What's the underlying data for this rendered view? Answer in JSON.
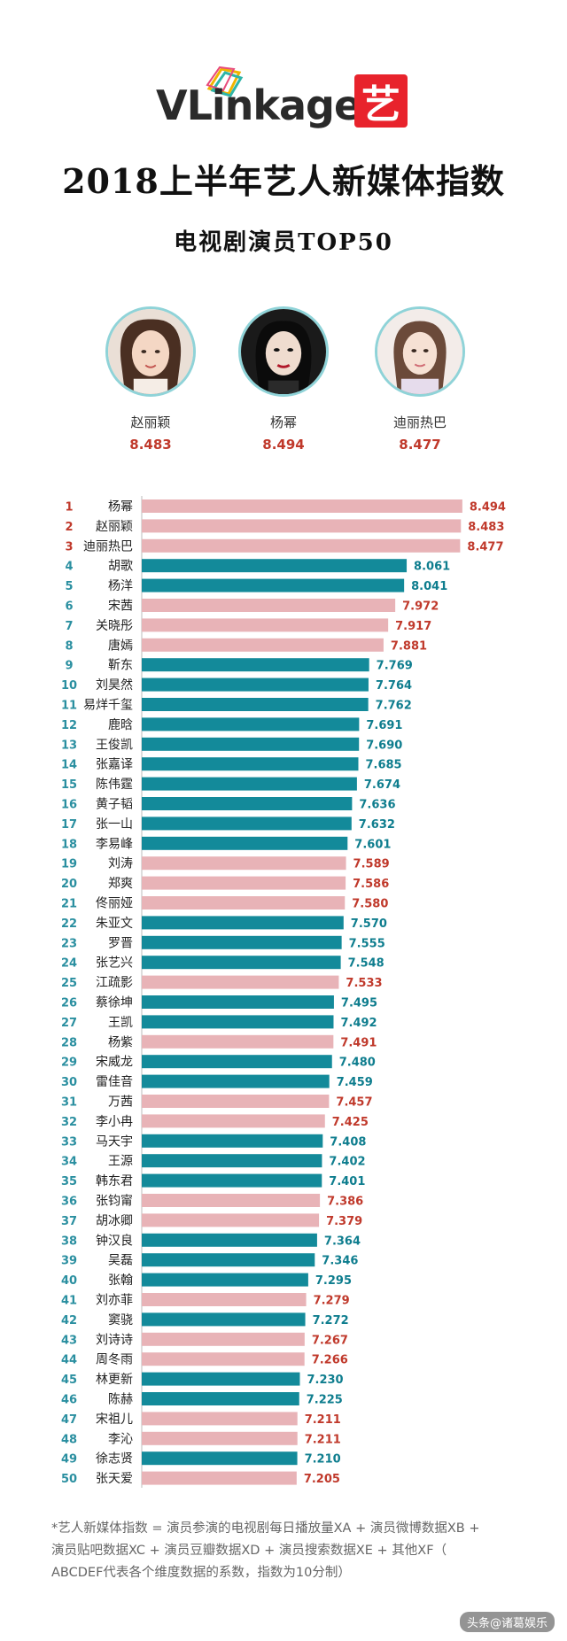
{
  "header": {
    "logo_text": "VLinkage",
    "badge": "艺",
    "title": "2018上半年艺人新媒体指数",
    "subtitle": "电视剧演员TOP50"
  },
  "podium": [
    {
      "name": "赵丽颖",
      "score": "8.483"
    },
    {
      "name": "杨幂",
      "score": "8.494"
    },
    {
      "name": "迪丽热巴",
      "score": "8.477"
    }
  ],
  "colors": {
    "pink": "#e8b3b7",
    "teal": "#138a9a",
    "rank_red": "#c0392b",
    "rank_teal": "#2a8fa0",
    "value_pink": "#c0392b",
    "value_teal": "#0e7d8e"
  },
  "chart_data": {
    "type": "bar",
    "orientation": "horizontal",
    "ranks": [
      1,
      2,
      3,
      4,
      5,
      6,
      7,
      8,
      9,
      10,
      11,
      12,
      13,
      14,
      15,
      16,
      17,
      18,
      19,
      20,
      21,
      22,
      23,
      24,
      25,
      26,
      27,
      28,
      29,
      30,
      31,
      32,
      33,
      34,
      35,
      36,
      37,
      38,
      39,
      40,
      41,
      42,
      43,
      44,
      45,
      46,
      47,
      48,
      49,
      50
    ],
    "categories": [
      "杨幂",
      "赵丽颖",
      "迪丽热巴",
      "胡歌",
      "杨洋",
      "宋茜",
      "关晓彤",
      "唐嫣",
      "靳东",
      "刘昊然",
      "易烊千玺",
      "鹿晗",
      "王俊凯",
      "张嘉译",
      "陈伟霆",
      "黄子韬",
      "张一山",
      "李易峰",
      "刘涛",
      "郑爽",
      "佟丽娅",
      "朱亚文",
      "罗晋",
      "张艺兴",
      "江疏影",
      "蔡徐坤",
      "王凯",
      "杨紫",
      "宋威龙",
      "雷佳音",
      "万茜",
      "李小冉",
      "马天宇",
      "王源",
      "韩东君",
      "张钧甯",
      "胡冰卿",
      "钟汉良",
      "吴磊",
      "张翰",
      "刘亦菲",
      "窦骁",
      "刘诗诗",
      "周冬雨",
      "林更新",
      "陈赫",
      "宋祖儿",
      "李沁",
      "徐志贤",
      "张天爱"
    ],
    "values": [
      8.494,
      8.483,
      8.477,
      8.061,
      8.041,
      7.972,
      7.917,
      7.881,
      7.769,
      7.764,
      7.762,
      7.691,
      7.69,
      7.685,
      7.674,
      7.636,
      7.632,
      7.601,
      7.589,
      7.586,
      7.58,
      7.57,
      7.555,
      7.548,
      7.533,
      7.495,
      7.492,
      7.491,
      7.48,
      7.459,
      7.457,
      7.425,
      7.408,
      7.402,
      7.401,
      7.386,
      7.379,
      7.364,
      7.346,
      7.295,
      7.279,
      7.272,
      7.267,
      7.266,
      7.23,
      7.225,
      7.211,
      7.211,
      7.21,
      7.205
    ],
    "value_labels": [
      "8.494",
      "8.483",
      "8.477",
      "8.061",
      "8.041",
      "7.972",
      "7.917",
      "7.881",
      "7.769",
      "7.764",
      "7.762",
      "7.691",
      "7.690",
      "7.685",
      "7.674",
      "7.636",
      "7.632",
      "7.601",
      "7.589",
      "7.586",
      "7.580",
      "7.570",
      "7.555",
      "7.548",
      "7.533",
      "7.495",
      "7.492",
      "7.491",
      "7.480",
      "7.459",
      "7.457",
      "7.425",
      "7.408",
      "7.402",
      "7.401",
      "7.386",
      "7.379",
      "7.364",
      "7.346",
      "7.295",
      "7.279",
      "7.272",
      "7.267",
      "7.266",
      "7.230",
      "7.225",
      "7.211",
      "7.211",
      "7.210",
      "7.205"
    ],
    "gender": [
      "f",
      "f",
      "f",
      "m",
      "m",
      "f",
      "f",
      "f",
      "m",
      "m",
      "m",
      "m",
      "m",
      "m",
      "m",
      "m",
      "m",
      "m",
      "f",
      "f",
      "f",
      "m",
      "m",
      "m",
      "f",
      "m",
      "m",
      "f",
      "m",
      "m",
      "f",
      "f",
      "m",
      "m",
      "m",
      "f",
      "f",
      "m",
      "m",
      "m",
      "f",
      "m",
      "f",
      "f",
      "m",
      "m",
      "f",
      "f",
      "m",
      "f"
    ],
    "xlim": [
      6.0,
      8.55
    ]
  },
  "footnote": {
    "line1": "*艺人新媒体指数 = 演员参演的电视剧每日播放量XA + 演员微博数据XB +",
    "line2": "演员贴吧数据XC + 演员豆瓣数据XD + 演员搜索数据XE + 其他XF（",
    "line3": "ABCDEF代表各个维度数据的系数，指数为10分制）"
  },
  "watermark": "头条@诸葛娱乐"
}
